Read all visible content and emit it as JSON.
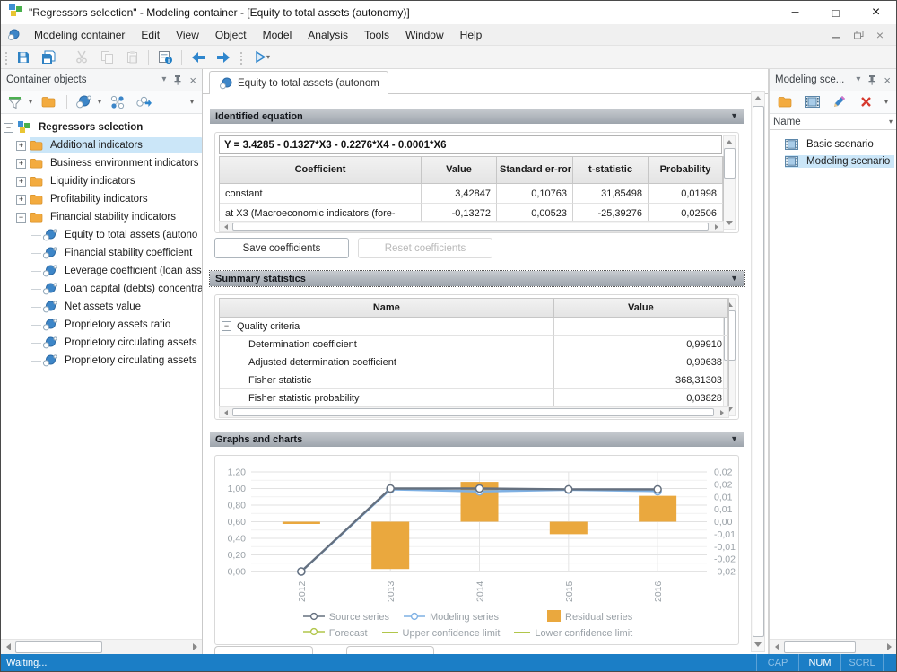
{
  "window": {
    "title": "\"Regressors selection\" - Modeling container - [Equity to total assets (autonomy)]",
    "controls": {
      "minimize": "─",
      "maximize": "□",
      "close": "×"
    }
  },
  "menu": {
    "items": [
      "Modeling container",
      "Edit",
      "View",
      "Object",
      "Model",
      "Analysis",
      "Tools",
      "Window",
      "Help"
    ]
  },
  "toolbar": {
    "buttons": [
      "save",
      "save-all",
      "cut",
      "copy",
      "paste",
      "properties",
      "back",
      "forward",
      "run"
    ]
  },
  "icons": {
    "dropdown-caret": "▾",
    "collapse-arrow": "▼",
    "close": "×",
    "plus": "+",
    "minus": "−",
    "save-icon": "floppy",
    "save-all-icon": "floppy-stack",
    "cut-icon": "scissors",
    "copy-icon": "pages",
    "paste-icon": "clipboard",
    "properties-icon": "form-info",
    "back-icon": "arrow-left",
    "forward-icon": "arrow-right",
    "run-icon": "play-outline",
    "filter-icon": "funnel",
    "folder-icon": "folder",
    "model-icon": "blue-spheres",
    "diagram-icon": "linked-circles",
    "link-run-icon": "circles-arrow",
    "pin-icon": "pushpin",
    "edit-icon": "pencil",
    "delete-icon": "red-x",
    "scenario-icon": "filmstrip-square"
  },
  "left_panel": {
    "title": "Container objects",
    "tree": [
      {
        "label": "Regressors selection",
        "type": "root",
        "expander": "minus",
        "level": 0,
        "selected": false
      },
      {
        "label": "Additional indicators",
        "type": "folder",
        "expander": "plus",
        "level": 1,
        "selected": true
      },
      {
        "label": "Business environment indicators",
        "type": "folder",
        "expander": "plus",
        "level": 1,
        "selected": false
      },
      {
        "label": "Liquidity indicators",
        "type": "folder",
        "expander": "plus",
        "level": 1,
        "selected": false
      },
      {
        "label": "Profitability indicators",
        "type": "folder",
        "expander": "plus",
        "level": 1,
        "selected": false
      },
      {
        "label": "Financial stability indicators",
        "type": "folder",
        "expander": "minus",
        "level": 1,
        "selected": false
      },
      {
        "label": "Equity to total assets (autono",
        "type": "model",
        "expander": null,
        "level": 2,
        "selected": false
      },
      {
        "label": "Financial stability coefficient",
        "type": "model",
        "expander": null,
        "level": 2,
        "selected": false
      },
      {
        "label": "Leverage coefficient (loan ass",
        "type": "model",
        "expander": null,
        "level": 2,
        "selected": false
      },
      {
        "label": "Loan capital (debts) concentra",
        "type": "model",
        "expander": null,
        "level": 2,
        "selected": false
      },
      {
        "label": "Net assets value",
        "type": "model",
        "expander": null,
        "level": 2,
        "selected": false
      },
      {
        "label": "Proprietory assets ratio",
        "type": "model",
        "expander": null,
        "level": 2,
        "selected": false
      },
      {
        "label": "Proprietory circulating assets",
        "type": "model",
        "expander": null,
        "level": 2,
        "selected": false
      },
      {
        "label": "Proprietory circulating assets",
        "type": "model",
        "expander": null,
        "level": 2,
        "selected": false
      }
    ]
  },
  "main": {
    "tab": {
      "label": "Equity to total assets (autonomy)"
    },
    "identified_equation": {
      "header": "Identified equation",
      "equation": "Y = 3.4285 - 0.1327*X3 - 0.2276*X4 - 0.0001*X6",
      "table": {
        "columns": [
          "Coefficient",
          "Value",
          "Standard er-ror",
          "t-statistic",
          "Probability"
        ],
        "rows": [
          [
            "constant",
            "3,42847",
            "0,10763",
            "31,85498",
            "0,01998"
          ],
          [
            "at X3 (Macroeconomic indicators (fore-",
            "-0,13272",
            "0,00523",
            "-25,39276",
            "0,02506"
          ]
        ]
      },
      "save_button": "Save coefficients",
      "reset_button": "Reset coefficients"
    },
    "summary_statistics": {
      "header": "Summary statistics",
      "columns": [
        "Name",
        "Value"
      ],
      "rows": [
        {
          "name": "Quality criteria",
          "value": "",
          "group": true
        },
        {
          "name": "Determination coefficient",
          "value": "0,99910"
        },
        {
          "name": "Adjusted determination coefficient",
          "value": "0,99638"
        },
        {
          "name": "Fisher statistic",
          "value": "368,31303"
        },
        {
          "name": "Fisher statistic probability",
          "value": "0,03828"
        }
      ]
    },
    "graphs": {
      "header": "Graphs and charts"
    }
  },
  "chart_data": {
    "type": "combo",
    "categories": [
      "2012",
      "2013",
      "2014",
      "2015",
      "2016"
    ],
    "series": [
      {
        "name": "Source series",
        "type": "line",
        "axis": "left",
        "color": "#65707f",
        "values": [
          0.0,
          1.0,
          1.0,
          0.99,
          0.99
        ]
      },
      {
        "name": "Modeling series",
        "type": "line",
        "axis": "left",
        "color": "#7fb1e4",
        "values": [
          0.0,
          0.99,
          0.965,
          0.985,
          0.968
        ]
      },
      {
        "name": "Residual series",
        "type": "bar",
        "axis": "right",
        "color": "#eaa83e",
        "values": [
          -0.0002,
          -0.019,
          0.016,
          -0.005,
          0.0104
        ]
      }
    ],
    "extra_legend": [
      {
        "name": "Forecast",
        "marker": "circle-line",
        "color": "#b1c64a"
      },
      {
        "name": "Upper confidence limit",
        "marker": "line",
        "color": "#b1c64a"
      },
      {
        "name": "Lower confidence limit",
        "marker": "line",
        "color": "#b1c64a"
      }
    ],
    "left_axis": {
      "min": 0,
      "max": 1.2,
      "tick_step": 0.2,
      "tick_labels": [
        "0,00",
        "0,20",
        "0,40",
        "0,60",
        "0,80",
        "1,00",
        "1,20"
      ]
    },
    "right_axis": {
      "min": -0.02,
      "max": 0.02,
      "tick_labels_top_down": [
        "0,02",
        "0,02",
        "0,01",
        "0,01",
        "0,00",
        "-0,01",
        "-0,01",
        "-0,02",
        "-0,02"
      ]
    },
    "grid": true,
    "legend_position": "bottom"
  },
  "right_panel": {
    "title": "Modeling sce...",
    "column_header": "Name",
    "items": [
      {
        "label": "Basic scenario",
        "selected": false
      },
      {
        "label": "Modeling scenario",
        "selected": true
      }
    ]
  },
  "status_bar": {
    "text": "Waiting...",
    "indicators": [
      {
        "label": "CAP",
        "active": false
      },
      {
        "label": "NUM",
        "active": true
      },
      {
        "label": "SCRL",
        "active": false
      }
    ]
  },
  "colors": {
    "statusbar_blue": "#1b7ec6",
    "selection_blue": "#cbe6f8",
    "bar_orange": "#eaa83e",
    "source_line": "#65707f",
    "modeling_line": "#7fb1e4",
    "forecast_green": "#b1c64a",
    "section_header_top": "#c7cbd0",
    "section_header_bottom": "#9da4ac"
  }
}
